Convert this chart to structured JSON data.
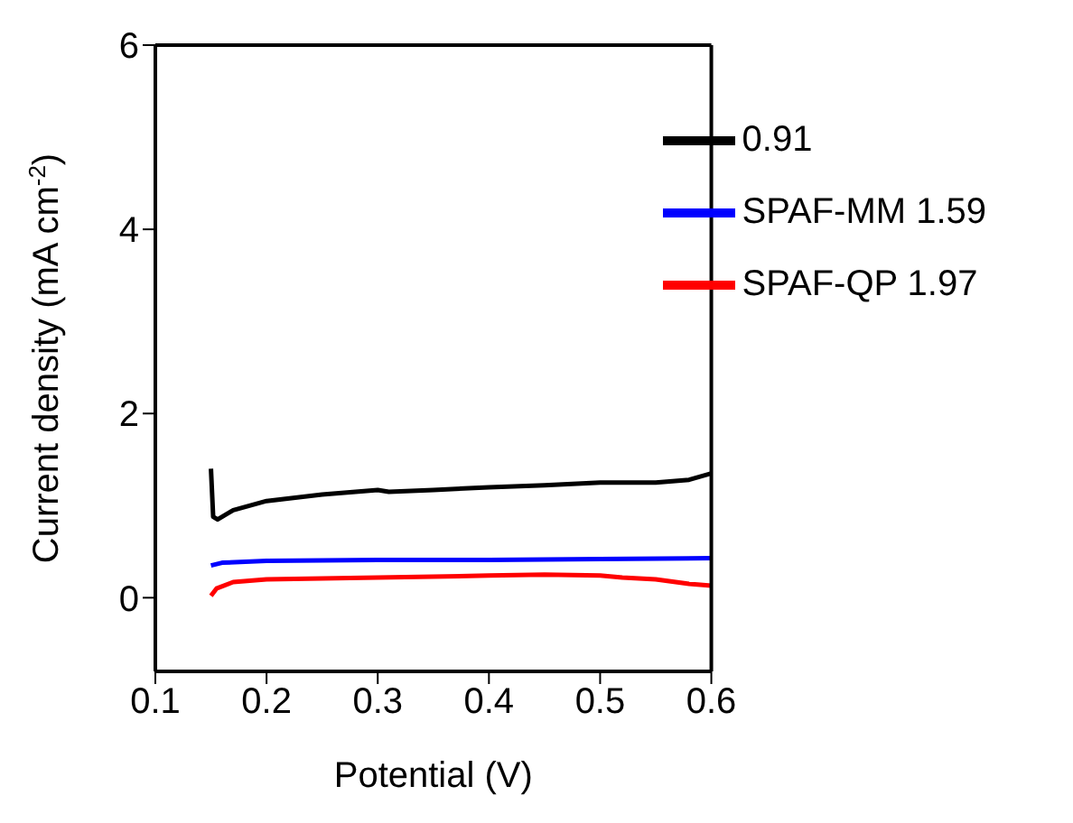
{
  "chart_data": {
    "type": "line",
    "xlabel": "Potential (V)",
    "ylabel": "Current density (mA cm$^{-2}$)",
    "xlim": [
      0.1,
      0.6
    ],
    "xticks": [
      0.1,
      0.2,
      0.3,
      0.4,
      0.5,
      0.6
    ],
    "ylim": [
      -0.8,
      6
    ],
    "yticks": [
      0,
      2,
      4,
      6
    ],
    "legend": "top right",
    "grid": false,
    "series": [
      {
        "name": "0.91",
        "color": "#000000",
        "x": [
          0.15,
          0.152,
          0.156,
          0.17,
          0.2,
          0.25,
          0.3,
          0.31,
          0.35,
          0.4,
          0.45,
          0.5,
          0.55,
          0.58,
          0.6
        ],
        "values": [
          1.4,
          0.88,
          0.85,
          0.95,
          1.05,
          1.12,
          1.17,
          1.15,
          1.17,
          1.2,
          1.22,
          1.25,
          1.25,
          1.28,
          1.35
        ]
      },
      {
        "name": "SPAF-MM 1.59",
        "color": "#0000ff",
        "x": [
          0.15,
          0.16,
          0.2,
          0.3,
          0.4,
          0.5,
          0.6
        ],
        "values": [
          0.35,
          0.38,
          0.4,
          0.41,
          0.41,
          0.42,
          0.43
        ]
      },
      {
        "name": "SPAF-QP 1.97",
        "color": "#ff0000",
        "x": [
          0.15,
          0.155,
          0.17,
          0.2,
          0.3,
          0.4,
          0.45,
          0.5,
          0.52,
          0.55,
          0.58,
          0.6
        ],
        "values": [
          0.02,
          0.1,
          0.17,
          0.2,
          0.22,
          0.24,
          0.25,
          0.24,
          0.22,
          0.2,
          0.15,
          0.13
        ]
      }
    ]
  }
}
